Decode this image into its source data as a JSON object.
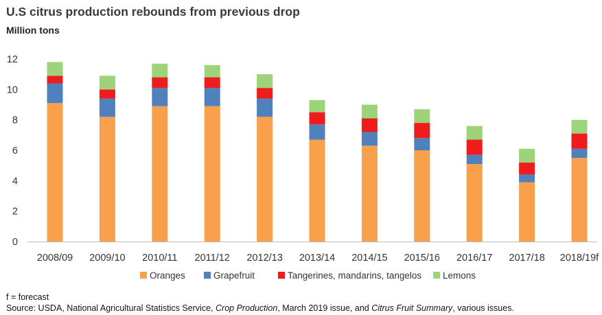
{
  "chart_data": {
    "type": "bar",
    "stacked": true,
    "title": "U.S citrus production rebounds from previous drop",
    "ylabel": "Million tons",
    "xlabel": "",
    "ylim": [
      0,
      12
    ],
    "yticks": [
      "0",
      "2",
      "4",
      "6",
      "8",
      "10",
      "12"
    ],
    "grid": false,
    "legend_position": "bottom",
    "categories": [
      "2008/09",
      "2009/10",
      "2010/11",
      "2011/12",
      "2012/13",
      "2013/14",
      "2014/15",
      "2015/16",
      "2016/17",
      "2017/18",
      "2018/19f"
    ],
    "series": [
      {
        "name": "Oranges",
        "color": "#f8a04c",
        "values": [
          9.1,
          8.2,
          8.9,
          8.9,
          8.2,
          6.7,
          6.3,
          6.0,
          5.1,
          3.9,
          5.5
        ]
      },
      {
        "name": "Grapefruit",
        "color": "#4f81bd",
        "values": [
          1.3,
          1.2,
          1.2,
          1.2,
          1.2,
          1.0,
          0.9,
          0.8,
          0.6,
          0.5,
          0.6
        ]
      },
      {
        "name": "Tangerines, mandarins, tangelos",
        "color": "#ee1c1c",
        "values": [
          0.5,
          0.6,
          0.7,
          0.7,
          0.7,
          0.8,
          0.9,
          1.0,
          1.0,
          0.8,
          1.0
        ]
      },
      {
        "name": "Lemons",
        "color": "#9ed37a",
        "values": [
          0.9,
          0.9,
          0.9,
          0.8,
          0.9,
          0.8,
          0.9,
          0.9,
          0.9,
          0.9,
          0.9
        ]
      }
    ]
  },
  "footer": {
    "note": "f = forecast",
    "source_prefix": "Source: USDA, National Agricultural Statistics Service,",
    "source_italic1": "Crop Production",
    "source_middle": ", March 2019 issue, and",
    "source_italic2": "Citrus Fruit Summary",
    "source_suffix": ", various issues."
  }
}
